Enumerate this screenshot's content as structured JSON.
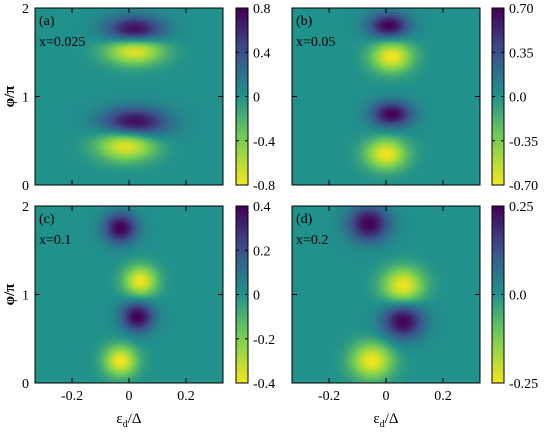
{
  "colors": {
    "colormap_low": "#f3e51e",
    "colormap_mid": "#21918c",
    "colormap_high": "#440154",
    "axes": "#000000"
  },
  "chart_data": [
    {
      "type": "heatmap",
      "panel_label": "(a)",
      "annotation": "x=0.025",
      "xlabel": "",
      "ylabel": "φ/π",
      "xlim": [
        -0.33,
        0.33
      ],
      "ylim": [
        0,
        2
      ],
      "xticks": [],
      "yticks": [
        "0",
        "1",
        "2"
      ],
      "colorbar": {
        "min": -0.8,
        "max": 0.8,
        "ticks": [
          "0.8",
          "0.4",
          "0",
          "-0.4",
          "-0.8"
        ]
      },
      "features": [
        {
          "x": 0.02,
          "y": 1.75,
          "value": 0.8,
          "sx": 0.07,
          "sy": 0.11
        },
        {
          "x": 0.02,
          "y": 1.52,
          "value": -0.8,
          "sx": 0.07,
          "sy": 0.11
        },
        {
          "x": 0.02,
          "y": 0.7,
          "value": 0.8,
          "sx": 0.08,
          "sy": 0.12
        },
        {
          "x": -0.01,
          "y": 0.45,
          "value": -0.8,
          "sx": 0.07,
          "sy": 0.12
        }
      ]
    },
    {
      "type": "heatmap",
      "panel_label": "(b)",
      "annotation": "x=0.05",
      "xlabel": "",
      "ylabel": "",
      "xlim": [
        -0.33,
        0.33
      ],
      "ylim": [
        0,
        2
      ],
      "xticks": [],
      "yticks": [],
      "colorbar": {
        "min": -0.7,
        "max": 0.7,
        "ticks": [
          "0.70",
          "0.35",
          "0.0",
          "-0.35",
          "-0.70"
        ]
      },
      "features": [
        {
          "x": 0.01,
          "y": 1.8,
          "value": 0.7,
          "sx": 0.05,
          "sy": 0.1
        },
        {
          "x": 0.02,
          "y": 1.45,
          "value": -0.7,
          "sx": 0.05,
          "sy": 0.12
        },
        {
          "x": 0.02,
          "y": 0.8,
          "value": 0.7,
          "sx": 0.05,
          "sy": 0.1
        },
        {
          "x": 0.0,
          "y": 0.35,
          "value": -0.7,
          "sx": 0.05,
          "sy": 0.12
        }
      ]
    },
    {
      "type": "heatmap",
      "panel_label": "(c)",
      "annotation": "x=0.1",
      "xlabel": "ε_d/Δ",
      "ylabel": "φ/π",
      "xlim": [
        -0.33,
        0.33
      ],
      "ylim": [
        0,
        2
      ],
      "xticks": [
        "-0.2",
        "0",
        "0.2"
      ],
      "yticks": [
        "0",
        "1",
        "2"
      ],
      "colorbar": {
        "min": -0.45,
        "max": 0.45,
        "ticks": [
          "0.4",
          "0.2",
          "0",
          "-0.2",
          "-0.4"
        ]
      },
      "features": [
        {
          "x": -0.03,
          "y": 1.75,
          "value": 0.45,
          "sx": 0.04,
          "sy": 0.12
        },
        {
          "x": 0.04,
          "y": 1.15,
          "value": -0.45,
          "sx": 0.04,
          "sy": 0.12
        },
        {
          "x": 0.03,
          "y": 0.75,
          "value": 0.45,
          "sx": 0.04,
          "sy": 0.12
        },
        {
          "x": -0.03,
          "y": 0.25,
          "value": -0.45,
          "sx": 0.04,
          "sy": 0.12
        }
      ]
    },
    {
      "type": "heatmap",
      "panel_label": "(d)",
      "annotation": "x=0.2",
      "xlabel": "ε_d/Δ",
      "ylabel": "",
      "xlim": [
        -0.33,
        0.33
      ],
      "ylim": [
        0,
        2
      ],
      "xticks": [
        "-0.2",
        "0",
        "0.2"
      ],
      "yticks": [],
      "colorbar": {
        "min": -0.25,
        "max": 0.25,
        "ticks": [
          "0.25",
          "0.0",
          "-0.25"
        ]
      },
      "features": [
        {
          "x": -0.06,
          "y": 1.8,
          "value": 0.25,
          "sx": 0.05,
          "sy": 0.14
        },
        {
          "x": 0.06,
          "y": 1.1,
          "value": -0.25,
          "sx": 0.05,
          "sy": 0.14
        },
        {
          "x": 0.06,
          "y": 0.7,
          "value": 0.25,
          "sx": 0.05,
          "sy": 0.14
        },
        {
          "x": -0.05,
          "y": 0.25,
          "value": -0.25,
          "sx": 0.05,
          "sy": 0.14
        }
      ]
    }
  ]
}
